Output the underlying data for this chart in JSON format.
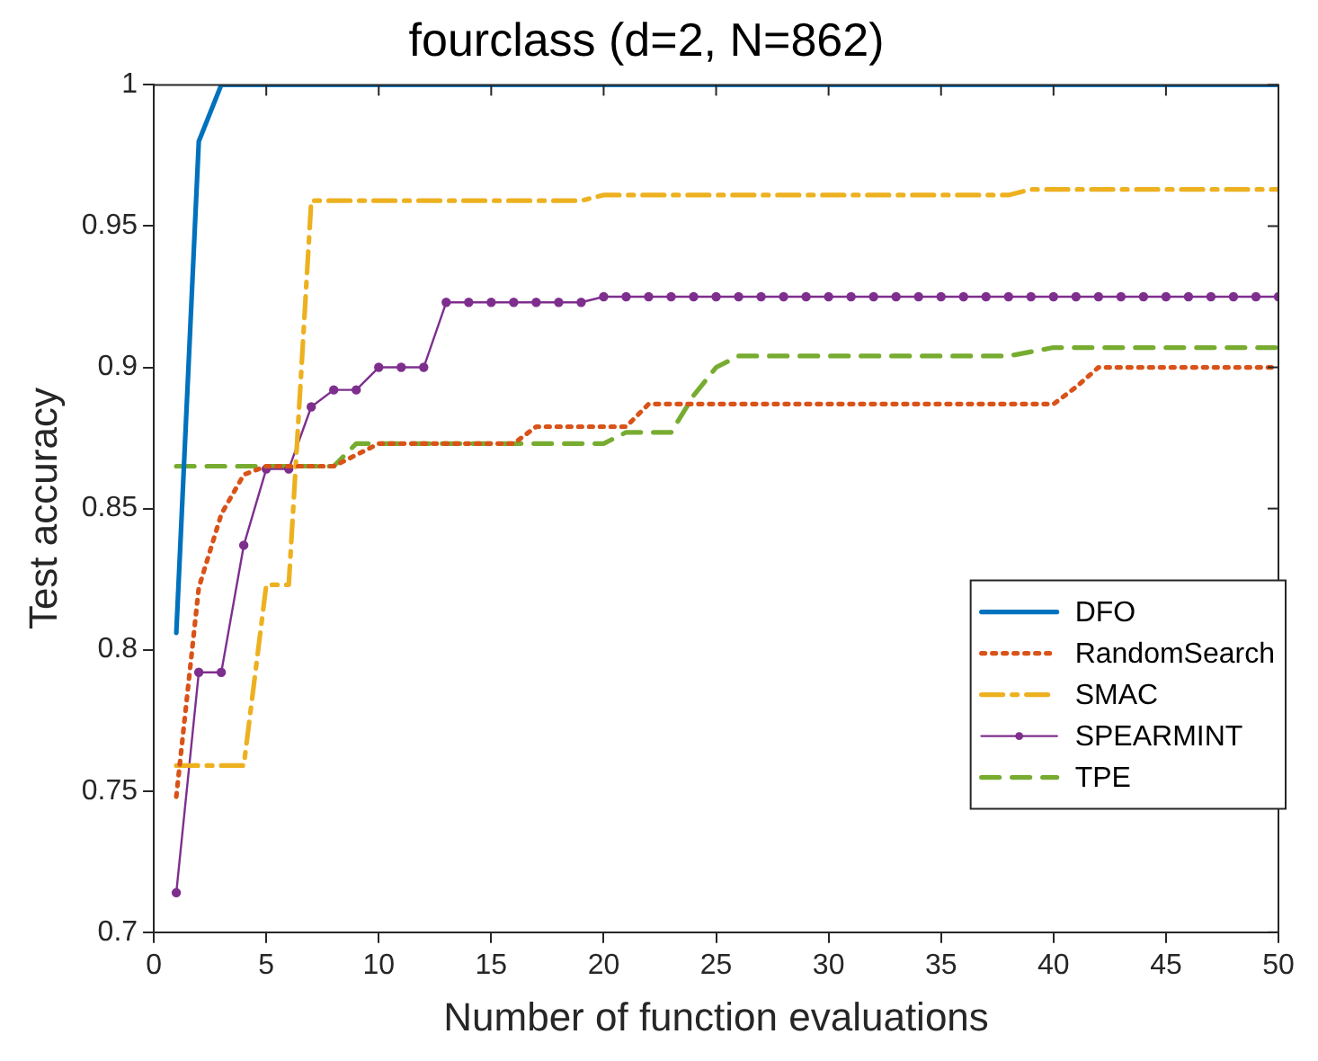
{
  "chart_data": {
    "type": "line",
    "title": "fourclass (d=2, N=862)",
    "xlabel": "Number of function evaluations",
    "ylabel": "Test accuracy",
    "xlim": [
      0,
      50
    ],
    "xticks": [
      0,
      5,
      10,
      15,
      20,
      25,
      30,
      35,
      40,
      45,
      50
    ],
    "ylim": [
      0.7,
      1
    ],
    "yticks": [
      0.7,
      0.75,
      0.8,
      0.85,
      0.9,
      0.95,
      1
    ],
    "grid": false,
    "legend": "right",
    "series": [
      {
        "name": "DFO",
        "color": "#0072bd",
        "line_style": "solid",
        "marker": "none",
        "x": [
          1,
          2,
          3,
          50
        ],
        "values": [
          0.806,
          0.98,
          1,
          1
        ]
      },
      {
        "name": "RandomSearch",
        "color": "#d95319",
        "line_style": "dotted",
        "marker": "none",
        "x": [
          1,
          2,
          3,
          4,
          5,
          8,
          9,
          10,
          16,
          17,
          21,
          22,
          40,
          41,
          42,
          50
        ],
        "values": [
          0.748,
          0.822,
          0.848,
          0.862,
          0.865,
          0.865,
          0.869,
          0.873,
          0.873,
          0.879,
          0.879,
          0.887,
          0.887,
          0.893,
          0.9,
          0.9
        ]
      },
      {
        "name": "SMAC",
        "color": "#edb120",
        "line_style": "dashdot",
        "marker": "none",
        "x": [
          1,
          4,
          5,
          6,
          7,
          19,
          20,
          38,
          39,
          50
        ],
        "values": [
          0.759,
          0.759,
          0.823,
          0.823,
          0.959,
          0.959,
          0.961,
          0.961,
          0.963,
          0.963
        ]
      },
      {
        "name": "SPEARMINT",
        "color": "#7e2f8e",
        "line_style": "solid",
        "marker": "circle",
        "x": [
          1,
          2,
          3,
          4,
          5,
          6,
          7,
          8,
          9,
          10,
          11,
          12,
          13,
          14,
          15,
          16,
          17,
          18,
          19,
          20,
          21,
          22,
          23,
          24,
          25,
          26,
          27,
          28,
          29,
          30,
          31,
          32,
          33,
          34,
          35,
          36,
          37,
          38,
          39,
          40,
          41,
          42,
          43,
          44,
          45,
          46,
          47,
          48,
          49,
          50
        ],
        "values": [
          0.714,
          0.792,
          0.792,
          0.837,
          0.864,
          0.864,
          0.886,
          0.892,
          0.892,
          0.9,
          0.9,
          0.9,
          0.923,
          0.923,
          0.923,
          0.923,
          0.923,
          0.923,
          0.923,
          0.925,
          0.925,
          0.925,
          0.925,
          0.925,
          0.925,
          0.925,
          0.925,
          0.925,
          0.925,
          0.925,
          0.925,
          0.925,
          0.925,
          0.925,
          0.925,
          0.925,
          0.925,
          0.925,
          0.925,
          0.925,
          0.925,
          0.925,
          0.925,
          0.925,
          0.925,
          0.925,
          0.925,
          0.925,
          0.925,
          0.925
        ]
      },
      {
        "name": "TPE",
        "color": "#77ac30",
        "line_style": "dashed",
        "marker": "none",
        "x": [
          1,
          8,
          9,
          20,
          21,
          23,
          24,
          25,
          26,
          38,
          40,
          50
        ],
        "values": [
          0.865,
          0.865,
          0.873,
          0.873,
          0.877,
          0.877,
          0.89,
          0.9,
          0.904,
          0.904,
          0.907,
          0.907
        ]
      }
    ]
  }
}
